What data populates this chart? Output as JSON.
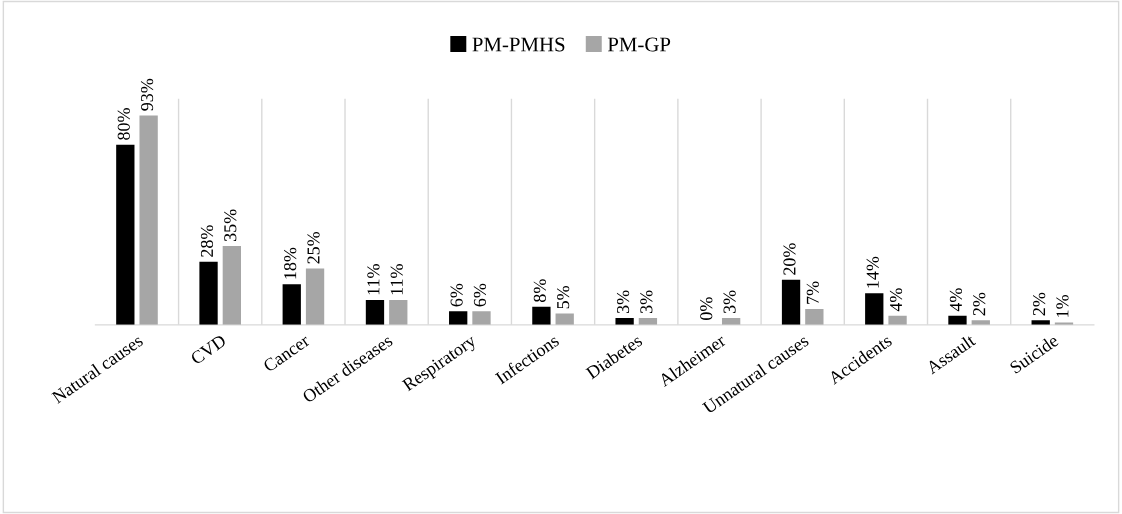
{
  "chart_data": {
    "type": "bar",
    "categories": [
      "Natural causes",
      "CVD",
      "Cancer",
      "Other diseases",
      "Respiratory",
      "Infections",
      "Diabetes",
      "Alzheimer",
      "Unnatural causes",
      "Accidents",
      "Assault",
      "Suicide"
    ],
    "series": [
      {
        "name": "PM-PMHS",
        "color": "#000000",
        "values": [
          80,
          28,
          18,
          11,
          6,
          8,
          3,
          0,
          20,
          14,
          4,
          2
        ],
        "value_labels": [
          "80%",
          "28%",
          "18%",
          "11%",
          "6%",
          "8%",
          "3%",
          "0%",
          "20%",
          "14%",
          "4%",
          "2%"
        ]
      },
      {
        "name": "PM-GP",
        "color": "#a6a6a6",
        "values": [
          93,
          35,
          25,
          11,
          6,
          5,
          3,
          3,
          7,
          4,
          2,
          1
        ],
        "value_labels": [
          "93%",
          "35%",
          "25%",
          "11%",
          "6%",
          "5%",
          "3%",
          "3%",
          "7%",
          "4%",
          "2%",
          "1%"
        ]
      }
    ],
    "tick_labels": "x",
    "grid": "x",
    "legend": "top"
  }
}
